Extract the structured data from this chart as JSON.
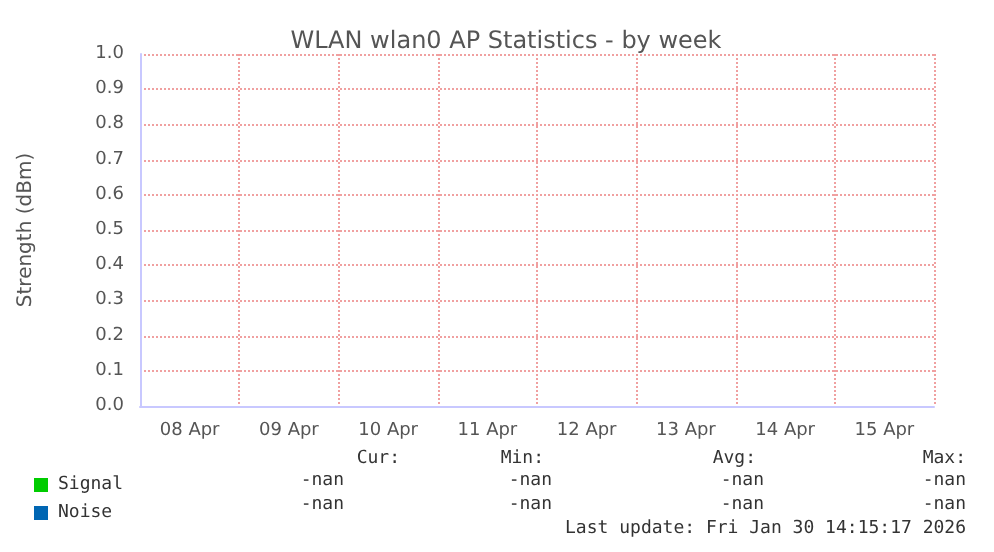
{
  "chart_data": {
    "type": "line",
    "title": "WLAN wlan0 AP Statistics - by week",
    "ylabel": "Strength (dBm)",
    "categories": [
      "08 Apr",
      "09 Apr",
      "10 Apr",
      "11 Apr",
      "12 Apr",
      "13 Apr",
      "14 Apr",
      "15 Apr"
    ],
    "series": [
      {
        "name": "Signal",
        "color": "#00cc00",
        "values": [
          null,
          null,
          null,
          null,
          null,
          null,
          null,
          null
        ]
      },
      {
        "name": "Noise",
        "color": "#0066b3",
        "values": [
          null,
          null,
          null,
          null,
          null,
          null,
          null,
          null
        ]
      }
    ],
    "ylim": [
      0,
      1
    ],
    "yticks": [
      {
        "value": 0,
        "label": "0.0"
      },
      0.1,
      0.2,
      0.3,
      0.4,
      0.5,
      0.6,
      0.7,
      0.8,
      0.9,
      {
        "value": 1,
        "label": "1.0"
      }
    ],
    "grid": true,
    "legend": "bottom left",
    "annotations": [
      "Cur:",
      "Min:",
      "Avg:",
      "Max:",
      "-nan",
      "-nan",
      "-nan",
      "-nan",
      "-nan",
      "-nan",
      "-nan",
      "-nan",
      "Last update: Fri Jan 30 14:15:17 2026"
    ]
  }
}
